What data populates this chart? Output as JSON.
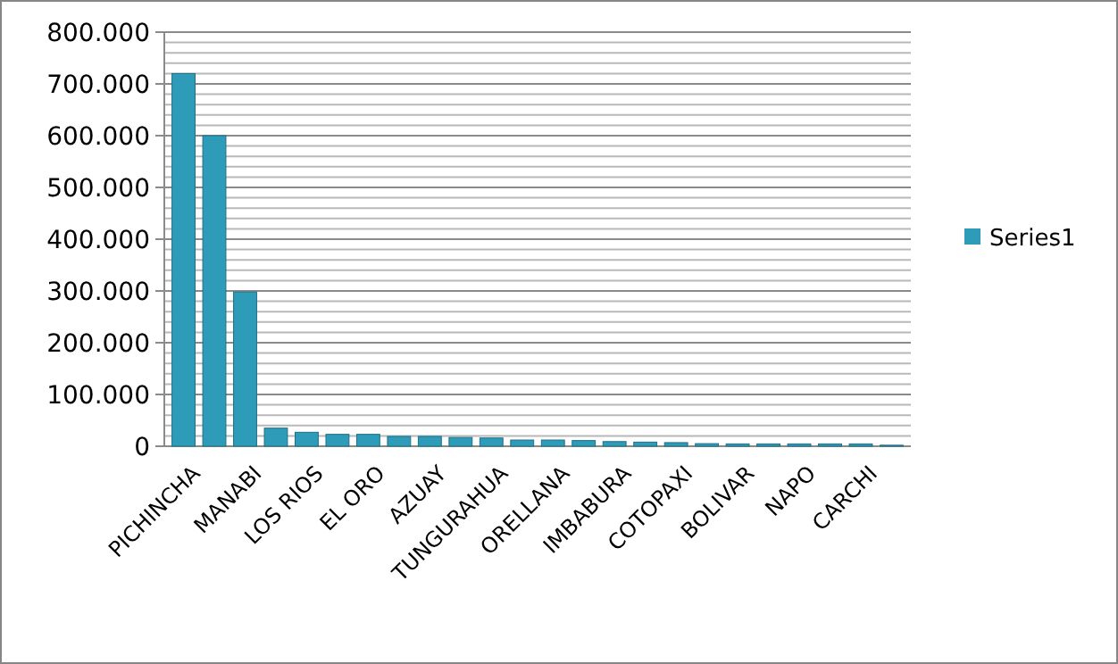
{
  "chart_data": {
    "type": "bar",
    "categories": [
      "PICHINCHA",
      null,
      "MANABI",
      null,
      "LOS RIOS",
      null,
      "EL ORO",
      null,
      "AZUAY",
      null,
      "TUNGURAHUA",
      null,
      "ORELLANA",
      null,
      "IMBABURA",
      null,
      "COTOPAXI",
      null,
      "BOLIVAR",
      null,
      "NAPO",
      null,
      "CARCHI",
      null
    ],
    "series": [
      {
        "name": "Series1",
        "color": "#2e9bb8",
        "values": [
          720000,
          600000,
          298000,
          35000,
          27000,
          23000,
          23000,
          19000,
          19000,
          17000,
          16000,
          12000,
          12000,
          11000,
          9000,
          8000,
          7000,
          5000,
          4500,
          4500,
          4500,
          4500,
          4500,
          2000
        ]
      }
    ],
    "ylim": [
      0,
      800000
    ],
    "yticks": [
      0,
      {
        "value": 20000,
        "label": null
      },
      {
        "value": 40000,
        "label": null
      },
      {
        "value": 60000,
        "label": null
      },
      {
        "value": 80000,
        "label": null
      },
      {
        "value": 100000,
        "label": "100.000"
      },
      {
        "value": 120000,
        "label": null
      },
      {
        "value": 140000,
        "label": null
      },
      {
        "value": 160000,
        "label": null
      },
      {
        "value": 180000,
        "label": null
      },
      {
        "value": 200000,
        "label": "200.000"
      },
      {
        "value": 220000,
        "label": null
      },
      {
        "value": 240000,
        "label": null
      },
      {
        "value": 260000,
        "label": null
      },
      {
        "value": 280000,
        "label": null
      },
      {
        "value": 300000,
        "label": "300.000"
      },
      {
        "value": 320000,
        "label": null
      },
      {
        "value": 340000,
        "label": null
      },
      {
        "value": 360000,
        "label": null
      },
      {
        "value": 380000,
        "label": null
      },
      {
        "value": 400000,
        "label": "400.000"
      },
      {
        "value": 420000,
        "label": null
      },
      {
        "value": 440000,
        "label": null
      },
      {
        "value": 460000,
        "label": null
      },
      {
        "value": 480000,
        "label": null
      },
      {
        "value": 500000,
        "label": "500.000"
      },
      {
        "value": 520000,
        "label": null
      },
      {
        "value": 540000,
        "label": null
      },
      {
        "value": 560000,
        "label": null
      },
      {
        "value": 580000,
        "label": null
      },
      {
        "value": 600000,
        "label": "600.000"
      },
      {
        "value": 620000,
        "label": null
      },
      {
        "value": 640000,
        "label": null
      },
      {
        "value": 660000,
        "label": null
      },
      {
        "value": 680000,
        "label": null
      },
      {
        "value": 700000,
        "label": "700.000"
      },
      {
        "value": 720000,
        "label": null
      },
      {
        "value": 740000,
        "label": null
      },
      {
        "value": 760000,
        "label": null
      },
      {
        "value": 780000,
        "label": null
      },
      {
        "value": 800000,
        "label": "800.000"
      }
    ],
    "grid": "y",
    "legend": "right"
  }
}
